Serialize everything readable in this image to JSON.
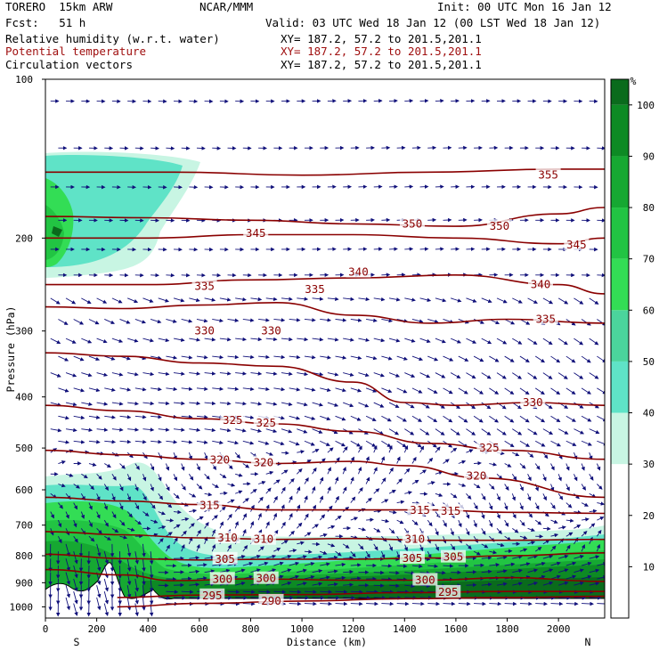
{
  "header": {
    "model": "TORERO  15km ARW",
    "center": "NCAR/MMM",
    "init": "Init: 00 UTC Mon 16 Jan 12",
    "fcst": "Fcst:   51 h",
    "valid": "Valid: 03 UTC Wed 18 Jan 12 (00 LST Wed 18 Jan 12)",
    "fields": [
      {
        "label": "Relative humidity (w.r.t. water)",
        "xy": "XY= 187.2, 57.2 to 201.5,201.1"
      },
      {
        "label": "Potential temperature",
        "xy": "XY= 187.2, 57.2 to 201.5,201.1"
      },
      {
        "label": "Circulation vectors",
        "xy": "XY= 187.2, 57.2 to 201.5,201.1"
      }
    ]
  },
  "chart_data": {
    "type": "cross-section",
    "xlabel": "Distance (km)",
    "ylabel": "Pressure (hPa)",
    "xlim": [
      0,
      2180
    ],
    "ylim": [
      1050,
      100
    ],
    "y_scale": "log",
    "x_ticks": [
      0,
      200,
      400,
      600,
      800,
      1000,
      1200,
      1400,
      1600,
      1800,
      2000
    ],
    "y_ticks": [
      100,
      200,
      300,
      400,
      500,
      600,
      700,
      800,
      900,
      1000
    ],
    "x_end_labels": {
      "left": "S",
      "right": "N"
    },
    "colorbar": {
      "unit": "%",
      "ticks": [
        10,
        20,
        30,
        40,
        50,
        60,
        70,
        80,
        90,
        100
      ],
      "levels": [
        {
          "from": 0,
          "to": 30,
          "color": "#ffffff"
        },
        {
          "from": 30,
          "to": 40,
          "color": "#c8f5e3"
        },
        {
          "from": 40,
          "to": 50,
          "color": "#5fe3c7"
        },
        {
          "from": 50,
          "to": 60,
          "color": "#4bd49c"
        },
        {
          "from": 60,
          "to": 70,
          "color": "#33dd55"
        },
        {
          "from": 70,
          "to": 80,
          "color": "#22c443"
        },
        {
          "from": 80,
          "to": 90,
          "color": "#16a832"
        },
        {
          "from": 90,
          "to": 100,
          "color": "#0d8a24"
        },
        {
          "from": 100,
          "to": 105,
          "color": "#0a6b1c"
        }
      ]
    },
    "isentropes": [
      {
        "theta": 290,
        "points": [
          [
            280,
            1000
          ],
          [
            600,
            985
          ],
          [
            1000,
            975
          ],
          [
            1400,
            965
          ],
          [
            1800,
            960
          ],
          [
            2180,
            955
          ]
        ],
        "labels": [
          [
            880,
            975
          ]
        ]
      },
      {
        "theta": 295,
        "points": [
          [
            280,
            960
          ],
          [
            600,
            950
          ],
          [
            1000,
            948
          ],
          [
            1400,
            940
          ],
          [
            1800,
            935
          ],
          [
            2180,
            935
          ]
        ],
        "labels": [
          [
            650,
            952
          ],
          [
            1570,
            938
          ]
        ]
      },
      {
        "theta": 300,
        "points": [
          [
            0,
            850
          ],
          [
            300,
            870
          ],
          [
            500,
            892
          ],
          [
            800,
            885
          ],
          [
            1200,
            890
          ],
          [
            1500,
            890
          ],
          [
            1800,
            880
          ],
          [
            2180,
            895
          ]
        ],
        "labels": [
          [
            690,
            886
          ],
          [
            860,
            884
          ],
          [
            1480,
            890
          ]
        ]
      },
      {
        "theta": 305,
        "points": [
          [
            0,
            795
          ],
          [
            300,
            810
          ],
          [
            600,
            815
          ],
          [
            900,
            812
          ],
          [
            1200,
            812
          ],
          [
            1500,
            808
          ],
          [
            1800,
            800
          ],
          [
            2180,
            790
          ]
        ],
        "labels": [
          [
            700,
            812
          ],
          [
            1430,
            809
          ],
          [
            1590,
            805
          ]
        ]
      },
      {
        "theta": 310,
        "points": [
          [
            0,
            720
          ],
          [
            300,
            730
          ],
          [
            600,
            740
          ],
          [
            900,
            745
          ],
          [
            1200,
            742
          ],
          [
            1500,
            748
          ],
          [
            1800,
            748
          ],
          [
            2180,
            745
          ]
        ],
        "labels": [
          [
            710,
            740
          ],
          [
            850,
            745
          ],
          [
            1440,
            745
          ]
        ]
      },
      {
        "theta": 315,
        "points": [
          [
            0,
            620
          ],
          [
            300,
            630
          ],
          [
            600,
            640
          ],
          [
            900,
            655
          ],
          [
            1200,
            655
          ],
          [
            1500,
            655
          ],
          [
            1800,
            662
          ],
          [
            2180,
            665
          ]
        ],
        "labels": [
          [
            640,
            642
          ],
          [
            1460,
            656
          ],
          [
            1580,
            658
          ]
        ]
      },
      {
        "theta": 320,
        "points": [
          [
            0,
            505
          ],
          [
            300,
            515
          ],
          [
            600,
            525
          ],
          [
            900,
            535
          ],
          [
            1200,
            530
          ],
          [
            1400,
            540
          ],
          [
            1700,
            570
          ],
          [
            2180,
            620
          ]
        ],
        "labels": [
          [
            680,
            527
          ],
          [
            850,
            533
          ],
          [
            1680,
            565
          ]
        ]
      },
      {
        "theta": 325,
        "points": [
          [
            0,
            415
          ],
          [
            300,
            425
          ],
          [
            600,
            440
          ],
          [
            900,
            450
          ],
          [
            1200,
            465
          ],
          [
            1500,
            490
          ],
          [
            1800,
            505
          ],
          [
            2180,
            525
          ]
        ],
        "labels": [
          [
            730,
            443
          ],
          [
            860,
            448
          ],
          [
            1730,
            500
          ]
        ]
      },
      {
        "theta": 330,
        "points": [
          [
            0,
            330
          ],
          [
            300,
            335
          ],
          [
            600,
            345
          ],
          [
            900,
            350
          ],
          [
            1200,
            375
          ],
          [
            1400,
            410
          ],
          [
            1600,
            415
          ],
          [
            1900,
            410
          ],
          [
            2180,
            415
          ]
        ],
        "labels": [
          [
            620,
            300
          ],
          [
            880,
            300
          ],
          [
            1900,
            410
          ]
        ]
      },
      {
        "theta": 335,
        "points": [
          [
            0,
            270
          ],
          [
            300,
            272
          ],
          [
            600,
            268
          ],
          [
            900,
            265
          ],
          [
            1200,
            280
          ],
          [
            1500,
            290
          ],
          [
            1800,
            285
          ],
          [
            2180,
            290
          ]
        ],
        "labels": [
          [
            620,
            247
          ],
          [
            1050,
            250
          ],
          [
            1950,
            285
          ]
        ]
      },
      {
        "theta": 340,
        "points": [
          [
            0,
            245
          ],
          [
            400,
            245
          ],
          [
            800,
            240
          ],
          [
            1200,
            238
          ],
          [
            1600,
            235
          ],
          [
            2000,
            245
          ],
          [
            2180,
            255
          ]
        ],
        "labels": [
          [
            1220,
            232
          ],
          [
            1930,
            245
          ]
        ]
      },
      {
        "theta": 345,
        "points": [
          [
            0,
            200
          ],
          [
            400,
            200
          ],
          [
            800,
            197
          ],
          [
            1200,
            197
          ],
          [
            1600,
            200
          ],
          [
            2000,
            205
          ],
          [
            2180,
            200
          ]
        ],
        "labels": [
          [
            820,
            196
          ],
          [
            2070,
            206
          ]
        ]
      },
      {
        "theta": 350,
        "points": [
          [
            0,
            182
          ],
          [
            400,
            183
          ],
          [
            800,
            185
          ],
          [
            1200,
            188
          ],
          [
            1600,
            190
          ],
          [
            2000,
            180
          ],
          [
            2180,
            175
          ]
        ],
        "labels": [
          [
            1430,
            188
          ],
          [
            1770,
            190
          ]
        ]
      },
      {
        "theta": 355,
        "points": [
          [
            0,
            150
          ],
          [
            500,
            150
          ],
          [
            1000,
            152
          ],
          [
            1500,
            150
          ],
          [
            2000,
            148
          ],
          [
            2180,
            148
          ]
        ],
        "labels": [
          [
            1960,
            152
          ]
        ]
      }
    ]
  }
}
